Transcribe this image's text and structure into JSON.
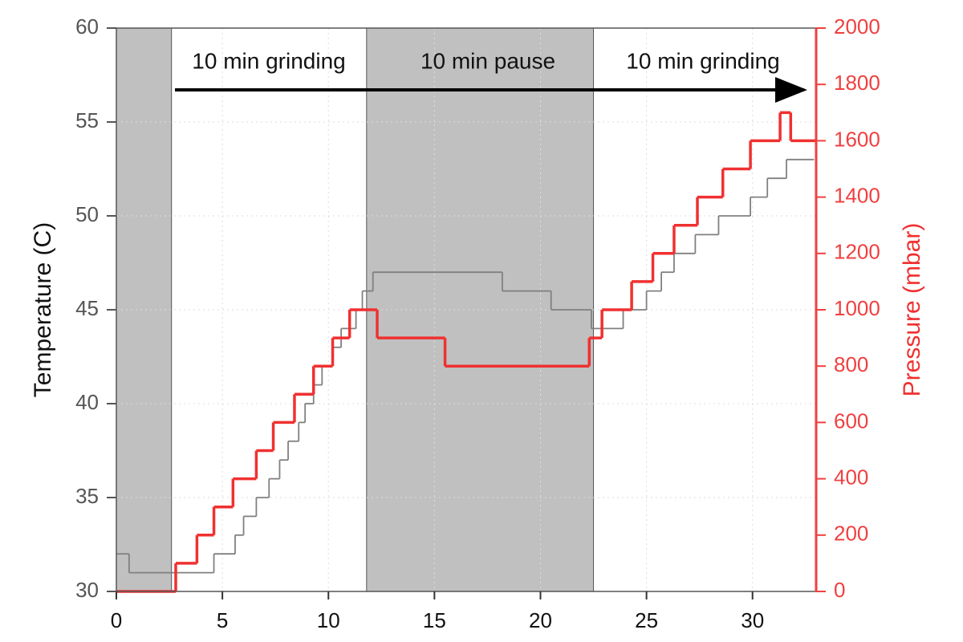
{
  "chart_data": {
    "type": "step",
    "y_label": "Temperature (C)",
    "y2_label": "Pressure (mbar)",
    "annotations": [
      "10 min grinding",
      "10 min pause",
      "10 min grinding"
    ],
    "shaded_regions": [
      [
        0,
        2.6
      ],
      [
        11.8,
        22.5
      ]
    ],
    "shade_color": "#c0c0c0",
    "xlim": [
      0,
      33
    ],
    "xticks": [
      0,
      5,
      10,
      15,
      20,
      25,
      30
    ],
    "ylim": [
      30,
      60
    ],
    "yticks": [
      30,
      35,
      40,
      45,
      50,
      55,
      60
    ],
    "y2lim": [
      0,
      2000
    ],
    "y2ticks": [
      0,
      200,
      400,
      600,
      800,
      1000,
      1200,
      1400,
      1600,
      1800,
      2000
    ],
    "grid": true,
    "series": [
      {
        "color": "#808080",
        "x": [
          0,
          0.6,
          4.6,
          5.6,
          6.0,
          6.6,
          7.2,
          7.7,
          8.1,
          8.6,
          8.9,
          9.3,
          9.7,
          10.2,
          10.6,
          11.3,
          11.6,
          12.1,
          18.2,
          20.5,
          22.4,
          23.9,
          25.0,
          25.7,
          26.3,
          27.3,
          28.4,
          29.9,
          30.7,
          31.6,
          32.9
        ],
        "values": [
          32,
          31,
          32,
          33,
          34,
          35,
          36,
          37,
          38,
          39,
          40,
          41,
          42,
          43,
          44,
          45,
          46,
          47,
          46,
          45,
          44,
          45,
          46,
          47,
          48,
          49,
          50,
          51,
          52,
          53,
          53
        ]
      },
      {
        "color": "#f03030",
        "axis": "y2",
        "x": [
          0,
          2.8,
          3.8,
          4.6,
          5.5,
          6.6,
          7.4,
          8.4,
          9.3,
          10.2,
          11.0,
          12.3,
          15.5,
          22.3,
          22.9,
          24.3,
          25.3,
          26.3,
          27.4,
          28.6,
          29.9,
          31.3,
          31.8,
          33
        ],
        "values": [
          0,
          100,
          200,
          300,
          400,
          500,
          600,
          700,
          800,
          900,
          1000,
          900,
          800,
          900,
          1000,
          1100,
          1200,
          1300,
          1400,
          1500,
          1600,
          1700,
          1600,
          1600
        ]
      }
    ]
  }
}
